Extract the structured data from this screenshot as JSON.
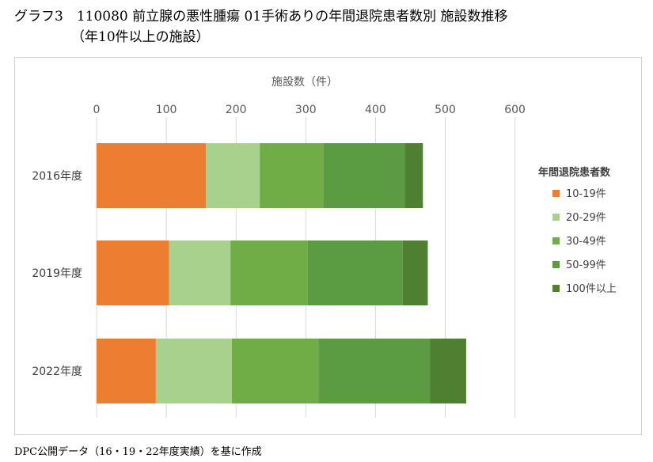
{
  "header": {
    "title_line1": "グラフ3　110080 前立腺の悪性腫瘍 01手術ありの年間退院患者数別 施設数推移",
    "title_line2": "（年10件以上の施設）"
  },
  "footer": {
    "note": "DPC公開データ（16・19・22年度実績）を基に作成"
  },
  "chart_data": {
    "type": "bar",
    "orientation": "horizontal",
    "stacked": true,
    "xlabel": "施設数（件）",
    "xlim": [
      0,
      600
    ],
    "xticks": [
      0,
      100,
      200,
      300,
      400,
      500,
      600
    ],
    "grid": true,
    "categories": [
      "2016年度",
      "2019年度",
      "2022年度"
    ],
    "legend_title": "年間退院患者数",
    "legend_position": "right",
    "series": [
      {
        "name": "10-19件",
        "color": "#ED7D31",
        "values": [
          157,
          104,
          85
        ]
      },
      {
        "name": "20-29件",
        "color": "#A9D18E",
        "values": [
          77,
          88,
          109
        ]
      },
      {
        "name": "30-49件",
        "color": "#70AD47",
        "values": [
          91,
          111,
          124
        ]
      },
      {
        "name": "50-99件",
        "color": "#5B9B41",
        "values": [
          117,
          136,
          160
        ]
      },
      {
        "name": "100件以上",
        "color": "#4F7F31",
        "values": [
          26,
          36,
          52
        ]
      }
    ]
  }
}
